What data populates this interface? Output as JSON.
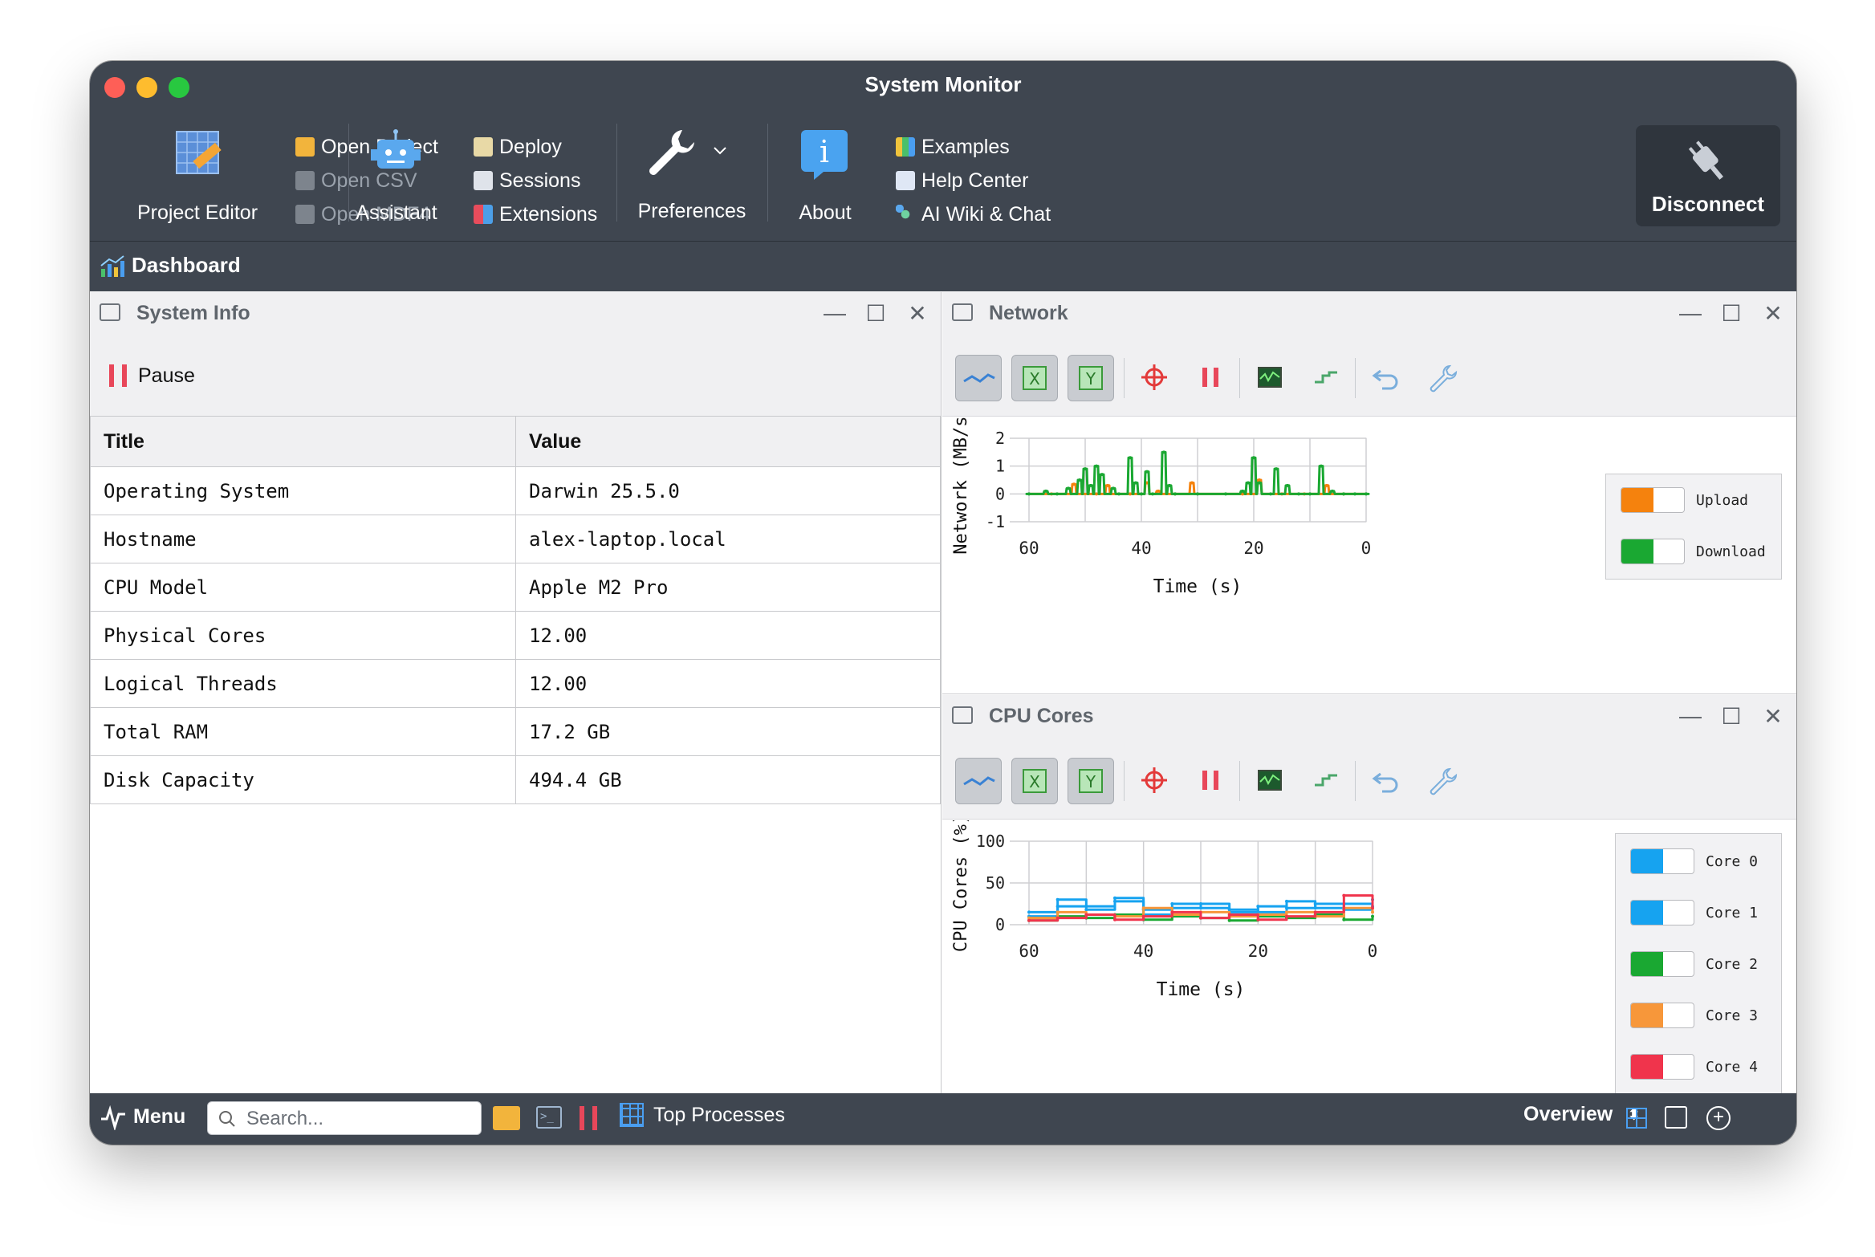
{
  "window": {
    "title": "System Monitor"
  },
  "toolbar": {
    "project_editor": "Project Editor",
    "open_project": "Open Project",
    "open_csv": "Open CSV",
    "open_mdf4": "Open MDF4",
    "assistant": "Assistant",
    "deploy": "Deploy",
    "sessions": "Sessions",
    "extensions": "Extensions",
    "preferences": "Preferences",
    "about": "About",
    "examples": "Examples",
    "help_center": "Help Center",
    "ai_wiki": "AI Wiki & Chat",
    "disconnect": "Disconnect"
  },
  "dashboard": {
    "label": "Dashboard"
  },
  "system_info": {
    "title": "System Info",
    "pause_label": "Pause",
    "columns": [
      "Title",
      "Value"
    ],
    "rows": [
      [
        "Operating System",
        "Darwin 25.5.0"
      ],
      [
        "Hostname",
        "alex-laptop.local"
      ],
      [
        "CPU Model",
        "Apple M2 Pro"
      ],
      [
        "Physical Cores",
        "12.00"
      ],
      [
        "Logical Threads",
        "12.00"
      ],
      [
        "Total RAM",
        "17.2 GB"
      ],
      [
        "Disk Capacity",
        "494.4 GB"
      ]
    ]
  },
  "network": {
    "title": "Network",
    "legend": [
      {
        "name": "Upload",
        "color": "#f5820d"
      },
      {
        "name": "Download",
        "color": "#1aa832"
      }
    ]
  },
  "cpu": {
    "title": "CPU Cores",
    "legend": [
      {
        "name": "Core 0",
        "color": "#16a3f0"
      },
      {
        "name": "Core 1",
        "color": "#16a3f0"
      },
      {
        "name": "Core 2",
        "color": "#1aa832"
      },
      {
        "name": "Core 3",
        "color": "#f7973a"
      },
      {
        "name": "Core 4",
        "color": "#f0344c"
      }
    ]
  },
  "chart_data": [
    {
      "type": "line",
      "title": "",
      "xlabel": "Time (s)",
      "ylabel": "Network (MB/s)",
      "xlim": [
        60,
        0
      ],
      "ylim": [
        -1,
        2
      ],
      "xticks": [
        "60",
        "40",
        "20",
        "0"
      ],
      "yticks": [
        "2",
        "1",
        "0",
        "-1"
      ],
      "legend_position": "right",
      "grid": true,
      "series": [
        {
          "name": "Upload",
          "x": [
            56,
            52,
            48,
            46,
            42,
            39,
            37,
            34,
            31,
            22,
            19,
            15,
            11,
            7,
            4
          ],
          "y": [
            0.0,
            0.35,
            0.0,
            0.3,
            0.0,
            0.4,
            0.1,
            0.0,
            0.4,
            0.0,
            0.5,
            0.0,
            0.0,
            0.3,
            0.0
          ]
        },
        {
          "name": "Download",
          "x": [
            60,
            57,
            55,
            53,
            51,
            50,
            49,
            48,
            47,
            45,
            44,
            42,
            41,
            40,
            39,
            38,
            36,
            35,
            34,
            30,
            25,
            22,
            21,
            20,
            19,
            17,
            16,
            14,
            12,
            10,
            8,
            6,
            4,
            2,
            0
          ],
          "y": [
            0.0,
            0.1,
            0.0,
            0.2,
            0.5,
            0.9,
            0.3,
            1.0,
            0.7,
            0.2,
            0.0,
            1.3,
            0.4,
            0.0,
            0.8,
            0.0,
            1.5,
            0.3,
            0.0,
            0.0,
            0.0,
            0.1,
            0.4,
            1.3,
            0.4,
            0.0,
            0.9,
            0.3,
            0.0,
            0.0,
            1.0,
            0.1,
            0.0,
            0.0,
            0.0
          ]
        }
      ]
    },
    {
      "type": "line",
      "title": "",
      "xlabel": "Time (s)",
      "ylabel": "CPU Cores (%)",
      "xlim": [
        60,
        0
      ],
      "ylim": [
        0,
        100
      ],
      "xticks": [
        "60",
        "40",
        "20",
        "0"
      ],
      "yticks": [
        "100",
        "50",
        "0"
      ],
      "legend_position": "right",
      "grid": true,
      "series": [
        {
          "name": "Core 0",
          "x": [
            60,
            55,
            50,
            45,
            40,
            35,
            30,
            25,
            20,
            15,
            10,
            5,
            0
          ],
          "y": [
            15,
            30,
            22,
            28,
            18,
            25,
            20,
            15,
            22,
            28,
            20,
            25,
            30
          ]
        },
        {
          "name": "Core 1",
          "x": [
            60,
            55,
            50,
            45,
            40,
            35,
            30,
            25,
            20,
            15,
            10,
            5,
            0
          ],
          "y": [
            10,
            22,
            18,
            32,
            12,
            20,
            25,
            18,
            15,
            20,
            25,
            18,
            22
          ]
        },
        {
          "name": "Core 2",
          "x": [
            60,
            55,
            50,
            45,
            40,
            35,
            30,
            25,
            20,
            15,
            10,
            5,
            0
          ],
          "y": [
            5,
            10,
            8,
            12,
            6,
            10,
            8,
            5,
            10,
            8,
            12,
            6,
            10
          ]
        },
        {
          "name": "Core 3",
          "x": [
            60,
            55,
            50,
            45,
            40,
            35,
            30,
            25,
            20,
            15,
            10,
            5,
            0
          ],
          "y": [
            8,
            15,
            12,
            10,
            20,
            12,
            15,
            10,
            12,
            15,
            10,
            20,
            15
          ]
        },
        {
          "name": "Core 4",
          "x": [
            60,
            55,
            50,
            45,
            40,
            35,
            30,
            25,
            20,
            15,
            10,
            5,
            0
          ],
          "y": [
            5,
            8,
            12,
            6,
            10,
            15,
            8,
            12,
            6,
            10,
            15,
            35,
            20
          ]
        }
      ]
    }
  ],
  "statusbar": {
    "menu": "Menu",
    "search_placeholder": "Search...",
    "top_processes": "Top Processes",
    "overview": "Overview"
  }
}
